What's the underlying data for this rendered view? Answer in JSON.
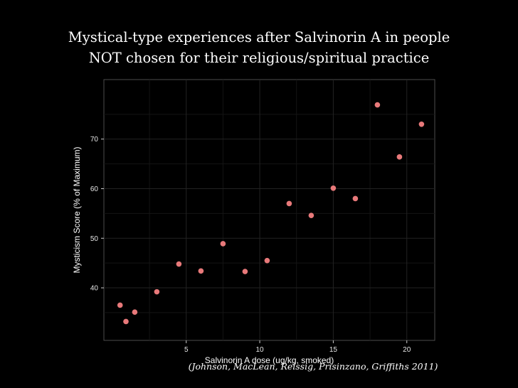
{
  "slide": {
    "title_line1": "Mystical-type experiences after Salvinorin A in people",
    "title_line2": "NOT chosen for their religious/spiritual practice",
    "citation": "(Johnson, MacLean, Reissig, Prisinzano, Griffiths 2011)"
  },
  "chart_data": {
    "type": "scatter",
    "title": "",
    "xlabel": "Salvinorin A dose (ug/kg, smoked)",
    "ylabel": "Mysticism Score (% of Maximum)",
    "xlim": [
      -0.6,
      21.9
    ],
    "ylim": [
      29.4,
      82
    ],
    "xticks": [
      5,
      10,
      15,
      20
    ],
    "yticks": [
      40,
      50,
      60,
      70
    ],
    "grid": true,
    "point_color": "#e8797a",
    "x": [
      0.5,
      0.9,
      1.5,
      3,
      4.5,
      6,
      7.5,
      9,
      10.5,
      12,
      13.5,
      15,
      16.5,
      18,
      19.5,
      21
    ],
    "y": [
      36.5,
      33.2,
      35.1,
      39.2,
      44.8,
      43.4,
      48.9,
      43.3,
      45.5,
      57.0,
      54.6,
      60.1,
      58.0,
      76.9,
      66.4,
      73.0
    ]
  }
}
